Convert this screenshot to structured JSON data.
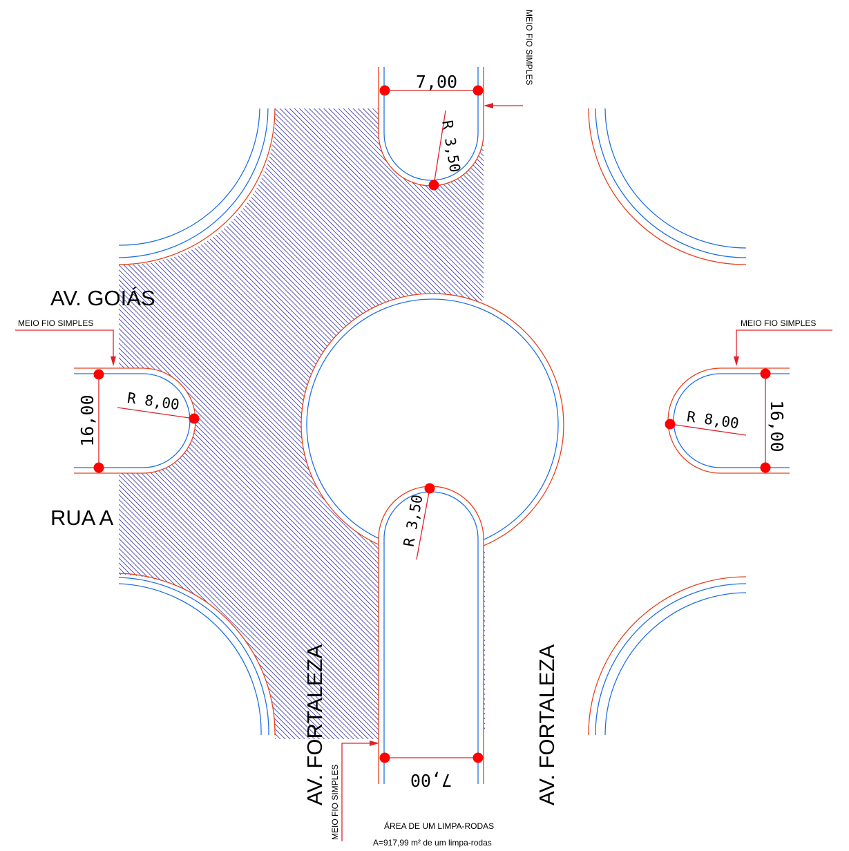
{
  "streets": {
    "goias": "AV. GOIÁS",
    "rua_a": "RUA A",
    "fortaleza_left": "AV. FORTALEZA",
    "fortaleza_right": "AV. FORTALEZA"
  },
  "dimensions": {
    "top_width": "7,00",
    "bottom_width": "7,00",
    "left_width": "16,00",
    "right_width": "16,00",
    "top_radius": "R 3,50",
    "bottom_radius": "R 3,50",
    "left_radius": "R 8,00",
    "right_radius": "R 8,00"
  },
  "labels": {
    "curb_top": "MEIO FIO SIMPLES",
    "curb_left": "MEIO FIO SIMPLES",
    "curb_right": "MEIO FIO SIMPLES",
    "curb_bottom": "MEIO FIO SIMPLES"
  },
  "notes": {
    "area_title": "ÁREA DE UM LIMPA-RODAS",
    "area_value": "A=917,99 m² de um limpa-rodas"
  },
  "colors": {
    "hatch": "#1a1aa8",
    "curb_blue": "#1e6fe6",
    "curb_red": "#e8401c",
    "marker": "#ff0000"
  }
}
